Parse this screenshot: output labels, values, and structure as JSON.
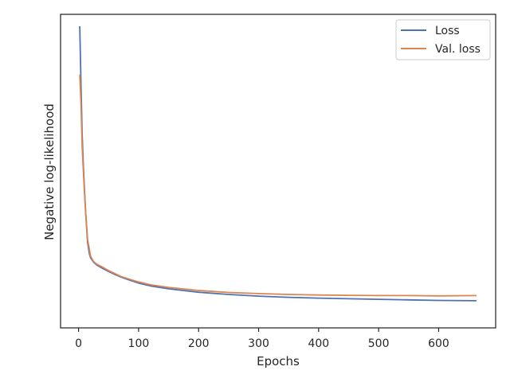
{
  "chart_data": {
    "type": "line",
    "title": "",
    "xlabel": "Epochs",
    "ylabel": "Negative log-likelihood",
    "xlim": [
      -30,
      695
    ],
    "ylim": [
      0,
      1
    ],
    "x_ticks": [
      0,
      100,
      200,
      300,
      400,
      500,
      600
    ],
    "x_tick_labels": [
      "0",
      "100",
      "200",
      "300",
      "400",
      "500",
      "600"
    ],
    "y_ticks_shown": false,
    "grid": false,
    "legend": {
      "placement": "top-right"
    },
    "series": [
      {
        "name": "Loss",
        "color": "#4c72b0",
        "x": [
          2,
          4,
          6,
          8,
          10,
          12,
          15,
          18,
          20,
          25,
          30,
          40,
          50,
          60,
          70,
          80,
          100,
          120,
          150,
          200,
          250,
          300,
          350,
          400,
          450,
          500,
          550,
          600,
          663
        ],
        "y": [
          1.0,
          0.8,
          0.62,
          0.51,
          0.42,
          0.34,
          0.24,
          0.2,
          0.185,
          0.17,
          0.16,
          0.148,
          0.137,
          0.127,
          0.118,
          0.11,
          0.096,
          0.086,
          0.076,
          0.064,
          0.056,
          0.05,
          0.046,
          0.043,
          0.041,
          0.039,
          0.037,
          0.035,
          0.034
        ]
      },
      {
        "name": "Val. loss",
        "color": "#dd8452",
        "x": [
          2,
          4,
          6,
          8,
          10,
          12,
          15,
          18,
          20,
          25,
          30,
          40,
          50,
          60,
          70,
          80,
          100,
          120,
          150,
          200,
          250,
          300,
          350,
          400,
          450,
          500,
          550,
          600,
          663
        ],
        "y": [
          0.83,
          0.73,
          0.58,
          0.49,
          0.41,
          0.34,
          0.25,
          0.215,
          0.19,
          0.172,
          0.163,
          0.152,
          0.14,
          0.13,
          0.12,
          0.113,
          0.1,
          0.09,
          0.081,
          0.07,
          0.063,
          0.059,
          0.056,
          0.054,
          0.053,
          0.052,
          0.052,
          0.051,
          0.052
        ]
      }
    ]
  }
}
